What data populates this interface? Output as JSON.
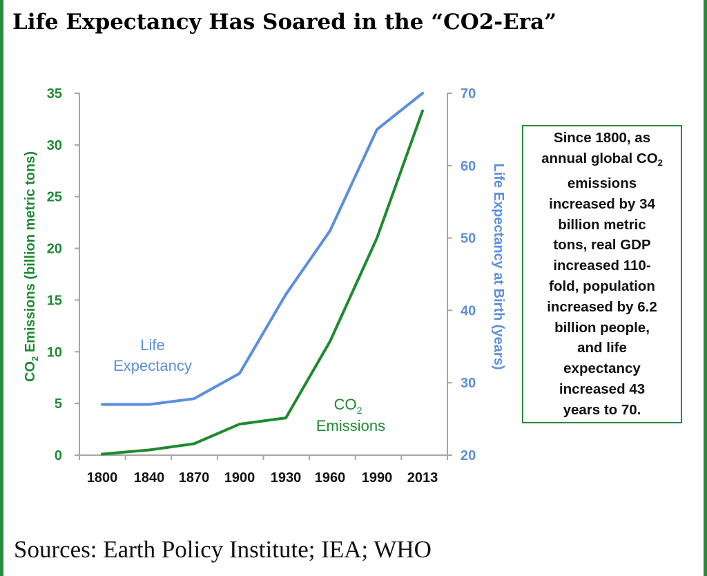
{
  "title": "Life Expectancy Has Soared in the “CO2-Era”",
  "source": "Sources: Earth Policy Institute; IEA; WHO",
  "colors": {
    "co2": "#1e8a30",
    "life": "#5b8fdc",
    "frame": "#2a8a3e",
    "axis": "#a6a6a6"
  },
  "callout": {
    "lines": [
      "Since 1800, as",
      "annual global CO",
      "emissions",
      "increased by 34",
      "billion metric",
      "tons, real GDP",
      "increased 110-",
      "fold, population",
      "increased by 6.2",
      "billion people,",
      "and life",
      "expectancy",
      "increased 43",
      "years to 70."
    ],
    "subscript": "2"
  },
  "chart_data": {
    "type": "line",
    "categories": [
      "1800",
      "1840",
      "1870",
      "1900",
      "1930",
      "1960",
      "1990",
      "2013"
    ],
    "left_axis": {
      "label_main": "CO",
      "label_sub": "2",
      "label_rest": " Emissions (billion metric tons)",
      "ylim": [
        0,
        35
      ],
      "ticks": [
        0,
        5,
        10,
        15,
        20,
        25,
        30,
        35
      ]
    },
    "right_axis": {
      "label": "Life Expectancy at Birth (years)",
      "ylim": [
        20,
        70
      ],
      "ticks": [
        20,
        30,
        40,
        50,
        60,
        70
      ]
    },
    "series": [
      {
        "key": "life",
        "axis": "right",
        "label_lines": [
          "Life",
          "Expectancy"
        ],
        "values": [
          27,
          27,
          27.8,
          31.3,
          42.2,
          51,
          65,
          70
        ]
      },
      {
        "key": "co2",
        "axis": "left",
        "label_main": "CO",
        "label_sub": "2",
        "label_line2": "Emissions",
        "values": [
          0.1,
          0.5,
          1.1,
          3.0,
          3.6,
          11.0,
          21.0,
          33.3
        ]
      }
    ],
    "grid": false
  }
}
